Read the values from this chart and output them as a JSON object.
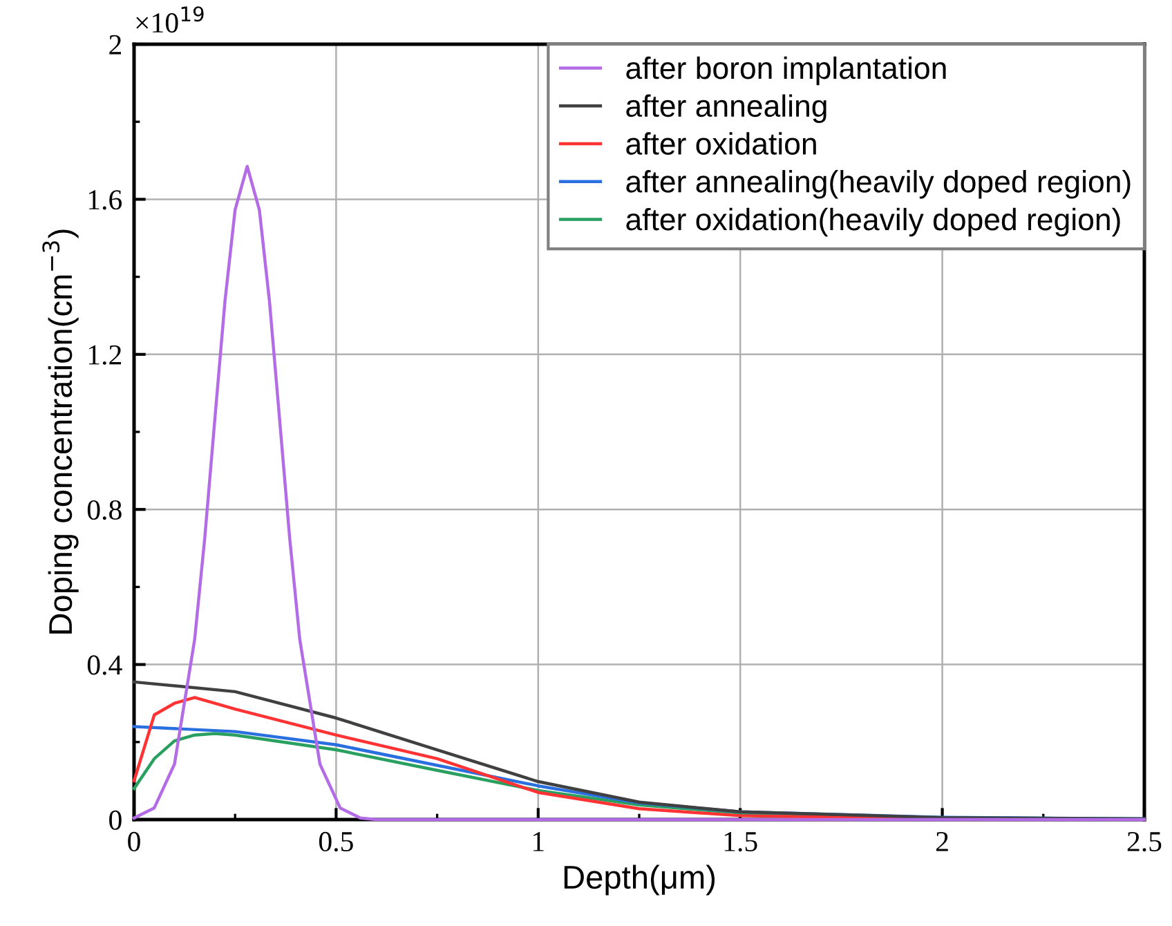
{
  "chart_data": {
    "type": "line",
    "xlabel": "Depth(μm)",
    "ylabel": "Doping concentration(cm$^{−3}$)",
    "annotations": [
      "×10$^{19}$"
    ],
    "xlim": [
      0,
      2.5
    ],
    "ylim": [
      0,
      2
    ],
    "xticks": [
      0,
      0.5,
      1,
      1.5,
      2,
      2.5
    ],
    "yticks": [
      0,
      0.4,
      0.8,
      1.2,
      1.6,
      2
    ],
    "grid": true,
    "legend": "top right",
    "marker": "none",
    "line_style": "solid",
    "series": [
      {
        "name": "after boron implantation",
        "color": "#b36be6",
        "x": [
          0,
          0.05,
          0.1,
          0.15,
          0.175,
          0.2,
          0.225,
          0.25,
          0.28,
          0.31,
          0.335,
          0.36,
          0.385,
          0.41,
          0.46,
          0.51,
          0.56,
          0.6,
          1,
          1.5,
          2,
          2.5
        ],
        "values": [
          0.004,
          0.03,
          0.143,
          0.465,
          0.727,
          1.034,
          1.338,
          1.573,
          1.685,
          1.573,
          1.338,
          1.034,
          0.727,
          0.465,
          0.143,
          0.03,
          0.004,
          0,
          0,
          0,
          0,
          0
        ]
      },
      {
        "name": "after annealing",
        "color": "#404040",
        "x": [
          0,
          0.25,
          0.5,
          0.75,
          1,
          1.25,
          1.5,
          2,
          2.5
        ],
        "values": [
          0.355,
          0.33,
          0.262,
          0.18,
          0.098,
          0.045,
          0.02,
          0.005,
          0.002
        ]
      },
      {
        "name": "after oxidation",
        "color": "#ff3333",
        "x": [
          0,
          0.05,
          0.1,
          0.15,
          0.25,
          0.5,
          0.75,
          1,
          1.25,
          1.5,
          2,
          2.5
        ],
        "values": [
          0.1,
          0.27,
          0.3,
          0.315,
          0.285,
          0.218,
          0.157,
          0.07,
          0.028,
          0.01,
          0.002,
          0.001
        ]
      },
      {
        "name": "after annealing(heavily doped region)",
        "color": "#2a6fe0",
        "x": [
          0,
          0.25,
          0.5,
          0.75,
          1,
          1.25,
          1.5,
          2,
          2.5
        ],
        "values": [
          0.24,
          0.227,
          0.193,
          0.14,
          0.087,
          0.043,
          0.02,
          0.006,
          0.002
        ]
      },
      {
        "name": "after oxidation(heavily doped region)",
        "color": "#2aa060",
        "x": [
          0,
          0.05,
          0.1,
          0.15,
          0.2,
          0.25,
          0.5,
          0.75,
          1,
          1.25,
          1.5,
          2,
          2.5
        ],
        "values": [
          0.08,
          0.157,
          0.203,
          0.218,
          0.222,
          0.218,
          0.18,
          0.127,
          0.075,
          0.038,
          0.017,
          0.005,
          0.002
        ]
      }
    ]
  }
}
